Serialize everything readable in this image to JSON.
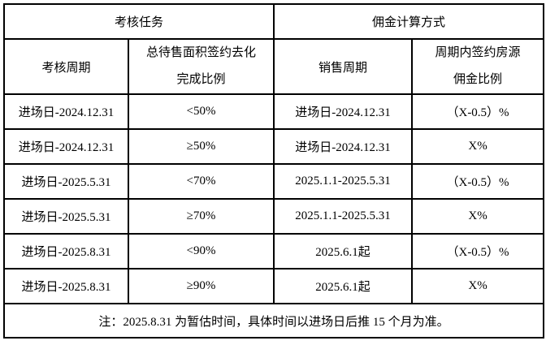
{
  "table": {
    "header_groups": [
      {
        "label": "考核任务"
      },
      {
        "label": "佣金计算方式"
      }
    ],
    "columns": [
      {
        "line1": "考核周期",
        "line2": ""
      },
      {
        "line1": "总待售面积签约去化",
        "line2": "完成比例"
      },
      {
        "line1": "销售周期",
        "line2": ""
      },
      {
        "line1": "周期内签约房源",
        "line2": "佣金比例"
      }
    ],
    "rows": [
      [
        "进场日-2024.12.31",
        "<50%",
        "进场日-2024.12.31",
        "（X-0.5）%"
      ],
      [
        "进场日-2024.12.31",
        "≥50%",
        "进场日-2024.12.31",
        "X%"
      ],
      [
        "进场日-2025.5.31",
        "<70%",
        "2025.1.1-2025.5.31",
        "（X-0.5）%"
      ],
      [
        "进场日-2025.5.31",
        "≥70%",
        "2025.1.1-2025.5.31",
        "X%"
      ],
      [
        "进场日-2025.8.31",
        "<90%",
        "2025.6.1起",
        "（X-0.5）%"
      ],
      [
        "进场日-2025.8.31",
        "≥90%",
        "2025.6.1起",
        "X%"
      ]
    ],
    "note": "注：2025.8.31 为暂估时间，具体时间以进场日后推 15 个月为准。"
  },
  "colors": {
    "border": "#000000",
    "text": "#000000",
    "background": "#ffffff"
  }
}
